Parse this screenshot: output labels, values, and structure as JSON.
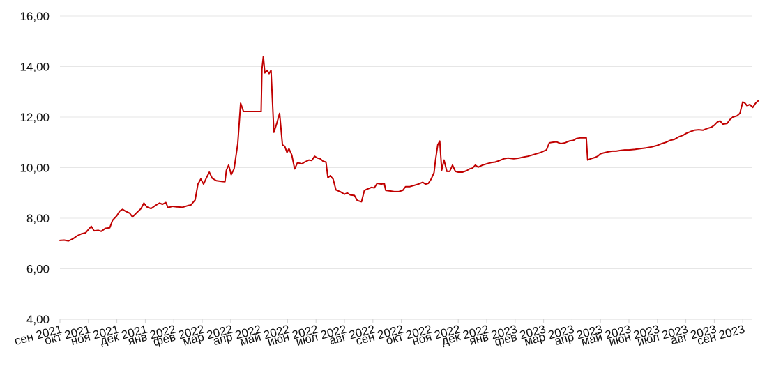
{
  "chart_data": {
    "type": "line",
    "title": "",
    "xlabel": "",
    "ylabel": "",
    "ylim": [
      4,
      16
    ],
    "grid": true,
    "y_ticks": [
      "4,00",
      "6,00",
      "8,00",
      "10,00",
      "12,00",
      "14,00",
      "16,00"
    ],
    "x_ticks": [
      "сен 2021",
      "окт 2021",
      "ноя 2021",
      "дек 2021",
      "янв 2022",
      "фев 2022",
      "мар 2022",
      "апр 2022",
      "май 2022",
      "июн 2022",
      "июл 2022",
      "авг 2022",
      "сен 2022",
      "окт 2022",
      "ноя 2022",
      "дек 2022",
      "янв 2023",
      "фев 2023",
      "мар 2023",
      "апр 2023",
      "май 2023",
      "июн 2023",
      "июл 2023",
      "авг 2023",
      "сен 2023"
    ],
    "series": [
      {
        "color": "#c00000",
        "points": [
          [
            0.0,
            7.12
          ],
          [
            0.15,
            7.13
          ],
          [
            0.3,
            7.1
          ],
          [
            0.45,
            7.18
          ],
          [
            0.6,
            7.3
          ],
          [
            0.75,
            7.38
          ],
          [
            0.9,
            7.42
          ],
          [
            1.0,
            7.55
          ],
          [
            1.1,
            7.68
          ],
          [
            1.2,
            7.5
          ],
          [
            1.35,
            7.52
          ],
          [
            1.45,
            7.48
          ],
          [
            1.6,
            7.6
          ],
          [
            1.75,
            7.62
          ],
          [
            1.85,
            7.92
          ],
          [
            2.0,
            8.1
          ],
          [
            2.1,
            8.28
          ],
          [
            2.2,
            8.35
          ],
          [
            2.3,
            8.28
          ],
          [
            2.45,
            8.2
          ],
          [
            2.55,
            8.05
          ],
          [
            2.7,
            8.22
          ],
          [
            2.85,
            8.38
          ],
          [
            2.95,
            8.6
          ],
          [
            3.05,
            8.45
          ],
          [
            3.2,
            8.38
          ],
          [
            3.35,
            8.5
          ],
          [
            3.5,
            8.6
          ],
          [
            3.6,
            8.55
          ],
          [
            3.72,
            8.62
          ],
          [
            3.8,
            8.42
          ],
          [
            3.95,
            8.47
          ],
          [
            4.1,
            8.45
          ],
          [
            4.3,
            8.43
          ],
          [
            4.5,
            8.5
          ],
          [
            4.6,
            8.52
          ],
          [
            4.75,
            8.72
          ],
          [
            4.85,
            9.35
          ],
          [
            4.95,
            9.55
          ],
          [
            5.05,
            9.35
          ],
          [
            5.15,
            9.6
          ],
          [
            5.25,
            9.82
          ],
          [
            5.35,
            9.58
          ],
          [
            5.5,
            9.48
          ],
          [
            5.7,
            9.45
          ],
          [
            5.8,
            9.44
          ],
          [
            5.85,
            9.9
          ],
          [
            5.93,
            10.1
          ],
          [
            6.02,
            9.72
          ],
          [
            6.12,
            9.95
          ],
          [
            6.25,
            10.95
          ],
          [
            6.35,
            12.55
          ],
          [
            6.45,
            12.22
          ],
          [
            6.6,
            12.22
          ],
          [
            6.8,
            12.22
          ],
          [
            7.0,
            12.22
          ],
          [
            7.07,
            12.22
          ],
          [
            7.1,
            13.9
          ],
          [
            7.15,
            14.4
          ],
          [
            7.2,
            13.75
          ],
          [
            7.28,
            13.85
          ],
          [
            7.35,
            13.72
          ],
          [
            7.42,
            13.85
          ],
          [
            7.52,
            11.4
          ],
          [
            7.62,
            11.75
          ],
          [
            7.72,
            12.15
          ],
          [
            7.82,
            10.9
          ],
          [
            7.9,
            10.85
          ],
          [
            7.98,
            10.6
          ],
          [
            8.05,
            10.75
          ],
          [
            8.15,
            10.5
          ],
          [
            8.25,
            9.95
          ],
          [
            8.35,
            10.2
          ],
          [
            8.5,
            10.15
          ],
          [
            8.6,
            10.22
          ],
          [
            8.75,
            10.3
          ],
          [
            8.85,
            10.28
          ],
          [
            8.95,
            10.45
          ],
          [
            9.05,
            10.38
          ],
          [
            9.15,
            10.35
          ],
          [
            9.25,
            10.25
          ],
          [
            9.35,
            10.22
          ],
          [
            9.42,
            9.6
          ],
          [
            9.5,
            9.68
          ],
          [
            9.6,
            9.55
          ],
          [
            9.7,
            9.12
          ],
          [
            9.85,
            9.05
          ],
          [
            10.0,
            8.95
          ],
          [
            10.1,
            9.0
          ],
          [
            10.2,
            8.92
          ],
          [
            10.35,
            8.9
          ],
          [
            10.45,
            8.7
          ],
          [
            10.6,
            8.65
          ],
          [
            10.7,
            9.1
          ],
          [
            10.8,
            9.15
          ],
          [
            10.95,
            9.22
          ],
          [
            11.05,
            9.2
          ],
          [
            11.15,
            9.38
          ],
          [
            11.3,
            9.35
          ],
          [
            11.4,
            9.38
          ],
          [
            11.45,
            9.1
          ],
          [
            11.6,
            9.08
          ],
          [
            11.75,
            9.05
          ],
          [
            11.9,
            9.05
          ],
          [
            12.05,
            9.1
          ],
          [
            12.15,
            9.25
          ],
          [
            12.3,
            9.25
          ],
          [
            12.45,
            9.3
          ],
          [
            12.6,
            9.35
          ],
          [
            12.75,
            9.42
          ],
          [
            12.85,
            9.35
          ],
          [
            12.95,
            9.38
          ],
          [
            13.05,
            9.55
          ],
          [
            13.15,
            9.8
          ],
          [
            13.2,
            10.3
          ],
          [
            13.28,
            10.9
          ],
          [
            13.35,
            11.05
          ],
          [
            13.42,
            9.9
          ],
          [
            13.5,
            10.3
          ],
          [
            13.6,
            9.85
          ],
          [
            13.7,
            9.85
          ],
          [
            13.8,
            10.1
          ],
          [
            13.9,
            9.85
          ],
          [
            14.0,
            9.82
          ],
          [
            14.15,
            9.82
          ],
          [
            14.3,
            9.88
          ],
          [
            14.4,
            9.95
          ],
          [
            14.5,
            9.98
          ],
          [
            14.6,
            10.1
          ],
          [
            14.7,
            10.02
          ],
          [
            14.85,
            10.1
          ],
          [
            15.0,
            10.15
          ],
          [
            15.15,
            10.2
          ],
          [
            15.3,
            10.22
          ],
          [
            15.45,
            10.28
          ],
          [
            15.6,
            10.35
          ],
          [
            15.75,
            10.38
          ],
          [
            15.95,
            10.35
          ],
          [
            16.15,
            10.38
          ],
          [
            16.3,
            10.42
          ],
          [
            16.45,
            10.45
          ],
          [
            16.6,
            10.5
          ],
          [
            16.75,
            10.55
          ],
          [
            16.9,
            10.6
          ],
          [
            17.0,
            10.65
          ],
          [
            17.1,
            10.7
          ],
          [
            17.2,
            10.98
          ],
          [
            17.3,
            11.0
          ],
          [
            17.45,
            11.02
          ],
          [
            17.6,
            10.95
          ],
          [
            17.75,
            10.98
          ],
          [
            17.9,
            11.05
          ],
          [
            18.05,
            11.08
          ],
          [
            18.15,
            11.15
          ],
          [
            18.3,
            11.18
          ],
          [
            18.45,
            11.18
          ],
          [
            18.5,
            11.18
          ],
          [
            18.55,
            10.3
          ],
          [
            18.65,
            10.35
          ],
          [
            18.8,
            10.4
          ],
          [
            18.9,
            10.45
          ],
          [
            19.0,
            10.55
          ],
          [
            19.1,
            10.58
          ],
          [
            19.25,
            10.62
          ],
          [
            19.4,
            10.65
          ],
          [
            19.55,
            10.65
          ],
          [
            19.7,
            10.68
          ],
          [
            19.85,
            10.7
          ],
          [
            20.0,
            10.7
          ],
          [
            20.2,
            10.72
          ],
          [
            20.4,
            10.75
          ],
          [
            20.6,
            10.78
          ],
          [
            20.8,
            10.82
          ],
          [
            21.0,
            10.88
          ],
          [
            21.15,
            10.95
          ],
          [
            21.3,
            11.0
          ],
          [
            21.45,
            11.08
          ],
          [
            21.6,
            11.12
          ],
          [
            21.75,
            11.22
          ],
          [
            21.9,
            11.28
          ],
          [
            22.0,
            11.35
          ],
          [
            22.15,
            11.42
          ],
          [
            22.3,
            11.48
          ],
          [
            22.45,
            11.5
          ],
          [
            22.6,
            11.48
          ],
          [
            22.75,
            11.55
          ],
          [
            22.9,
            11.6
          ],
          [
            23.0,
            11.68
          ],
          [
            23.1,
            11.8
          ],
          [
            23.2,
            11.85
          ],
          [
            23.3,
            11.72
          ],
          [
            23.45,
            11.75
          ],
          [
            23.55,
            11.9
          ],
          [
            23.65,
            12.0
          ],
          [
            23.8,
            12.05
          ],
          [
            23.9,
            12.15
          ],
          [
            24.0,
            12.6
          ],
          [
            24.08,
            12.55
          ],
          [
            24.15,
            12.45
          ],
          [
            24.25,
            12.5
          ],
          [
            24.35,
            12.38
          ],
          [
            24.45,
            12.55
          ],
          [
            24.55,
            12.65
          ]
        ]
      }
    ]
  }
}
